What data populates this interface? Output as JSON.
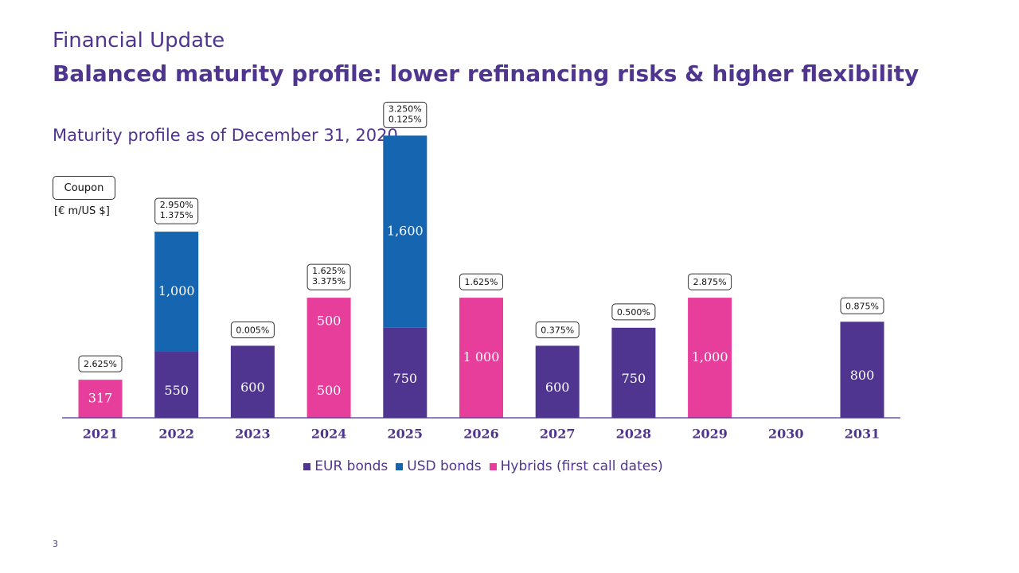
{
  "header": {
    "kicker": "Financial Update",
    "headline": "Balanced maturity profile: lower refinancing risks & higher flexibility"
  },
  "chart_header": {
    "subtitle": "Maturity profile as of December 31, 2020",
    "coupon_label": "Coupon",
    "unit_label": "[€ m/US  $]"
  },
  "colors": {
    "eur": "#4f3590",
    "usd": "#1565b0",
    "hybrid": "#e83e9b",
    "text": "#4f3590"
  },
  "chart_data": {
    "type": "bar",
    "stacked": true,
    "title": "Maturity profile as of December 31, 2020",
    "ylabel": "[€ m/US  $]",
    "xlabel": "",
    "ylim": [
      0,
      2500
    ],
    "categories": [
      "2021",
      "2022",
      "2023",
      "2024",
      "2025",
      "2026",
      "2027",
      "2028",
      "2029",
      "2030",
      "2031"
    ],
    "series": [
      {
        "name": "EUR bonds",
        "key": "eur",
        "values": [
          0,
          550,
          600,
          0,
          750,
          0,
          600,
          750,
          0,
          0,
          800
        ],
        "labels": [
          "",
          "550",
          "600",
          "",
          "750",
          "",
          "600",
          "750",
          "",
          "",
          "800"
        ]
      },
      {
        "name": "USD bonds",
        "key": "usd",
        "values": [
          0,
          1000,
          0,
          0,
          1600,
          0,
          0,
          0,
          0,
          0,
          0
        ],
        "labels": [
          "",
          "1,000",
          "",
          "",
          "1,600",
          "",
          "",
          "",
          "",
          "",
          ""
        ]
      },
      {
        "name": "Hybrids (first call dates)",
        "key": "hybrid",
        "values": [
          317,
          0,
          0,
          1000,
          0,
          1000,
          0,
          0,
          1000,
          0,
          0
        ],
        "labels": [
          "317",
          "",
          "",
          "",
          "",
          "1 000",
          "",
          "",
          "1,000",
          "",
          ""
        ]
      }
    ],
    "hybrid_split_2024": {
      "values": [
        500,
        500
      ],
      "labels": [
        "500",
        "500"
      ]
    },
    "coupons": [
      [
        "2.625%"
      ],
      [
        "2.950%",
        "1.375%"
      ],
      [
        "0.005%"
      ],
      [
        "1.625%",
        "3.375%"
      ],
      [
        "3.250%",
        "0.125%"
      ],
      [
        "1.625%"
      ],
      [
        "0.375%"
      ],
      [
        "0.500%"
      ],
      [
        "2.875%"
      ],
      [],
      [
        "0.875%"
      ]
    ],
    "legend": [
      "EUR bonds",
      "USD bonds",
      "Hybrids (first call dates)"
    ],
    "legend_position": "bottom-center",
    "grid": false
  },
  "footer": {
    "page_number": "3"
  }
}
